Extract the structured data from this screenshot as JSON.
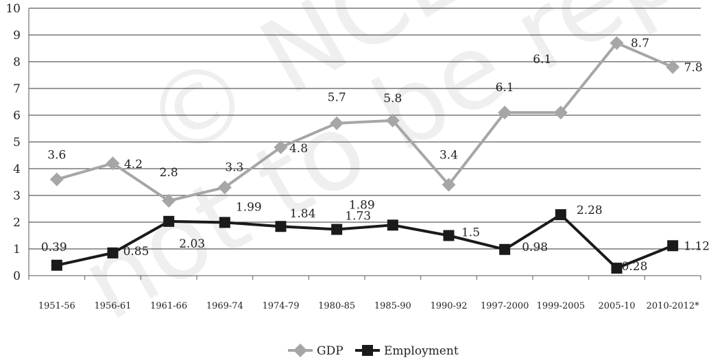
{
  "chart_data": {
    "type": "line",
    "categories": [
      "1951-56",
      "1956-61",
      "1961-66",
      "1969-74",
      "1974-79",
      "1980-85",
      "1985-90",
      "1990-92",
      "1997-2000",
      "1999-2005",
      "2005-10",
      "2010-2012*"
    ],
    "ylim": [
      0,
      10
    ],
    "yticks": [
      "0",
      "1",
      "2",
      "3",
      "4",
      "5",
      "6",
      "7",
      "8",
      "9",
      "10"
    ],
    "grid": true,
    "legend_position": "bottom-center",
    "series": [
      {
        "name": "GDP",
        "color": "#a6a6a6",
        "marker": "diamond",
        "values": [
          3.6,
          4.2,
          2.8,
          3.3,
          4.8,
          5.7,
          5.8,
          3.4,
          6.1,
          6.1,
          8.7,
          7.8
        ],
        "labels": [
          "3.6",
          "4.2",
          "2.8",
          "3.3",
          "4.8",
          "5.7",
          "5.8",
          "3.4",
          "6.1",
          "6.1",
          "8.7",
          "7.8"
        ]
      },
      {
        "name": "Employment",
        "color": "#1a1a1a",
        "marker": "square",
        "values": [
          0.39,
          0.85,
          2.03,
          1.99,
          1.84,
          1.73,
          1.89,
          1.5,
          0.98,
          2.28,
          0.28,
          1.12
        ],
        "labels": [
          "0.39",
          "0.85",
          "2.03",
          "1.99",
          "1.84",
          "1.73",
          "1.89",
          "1.5",
          "0.98",
          "2.28",
          "0.28",
          "1.12"
        ]
      }
    ]
  }
}
